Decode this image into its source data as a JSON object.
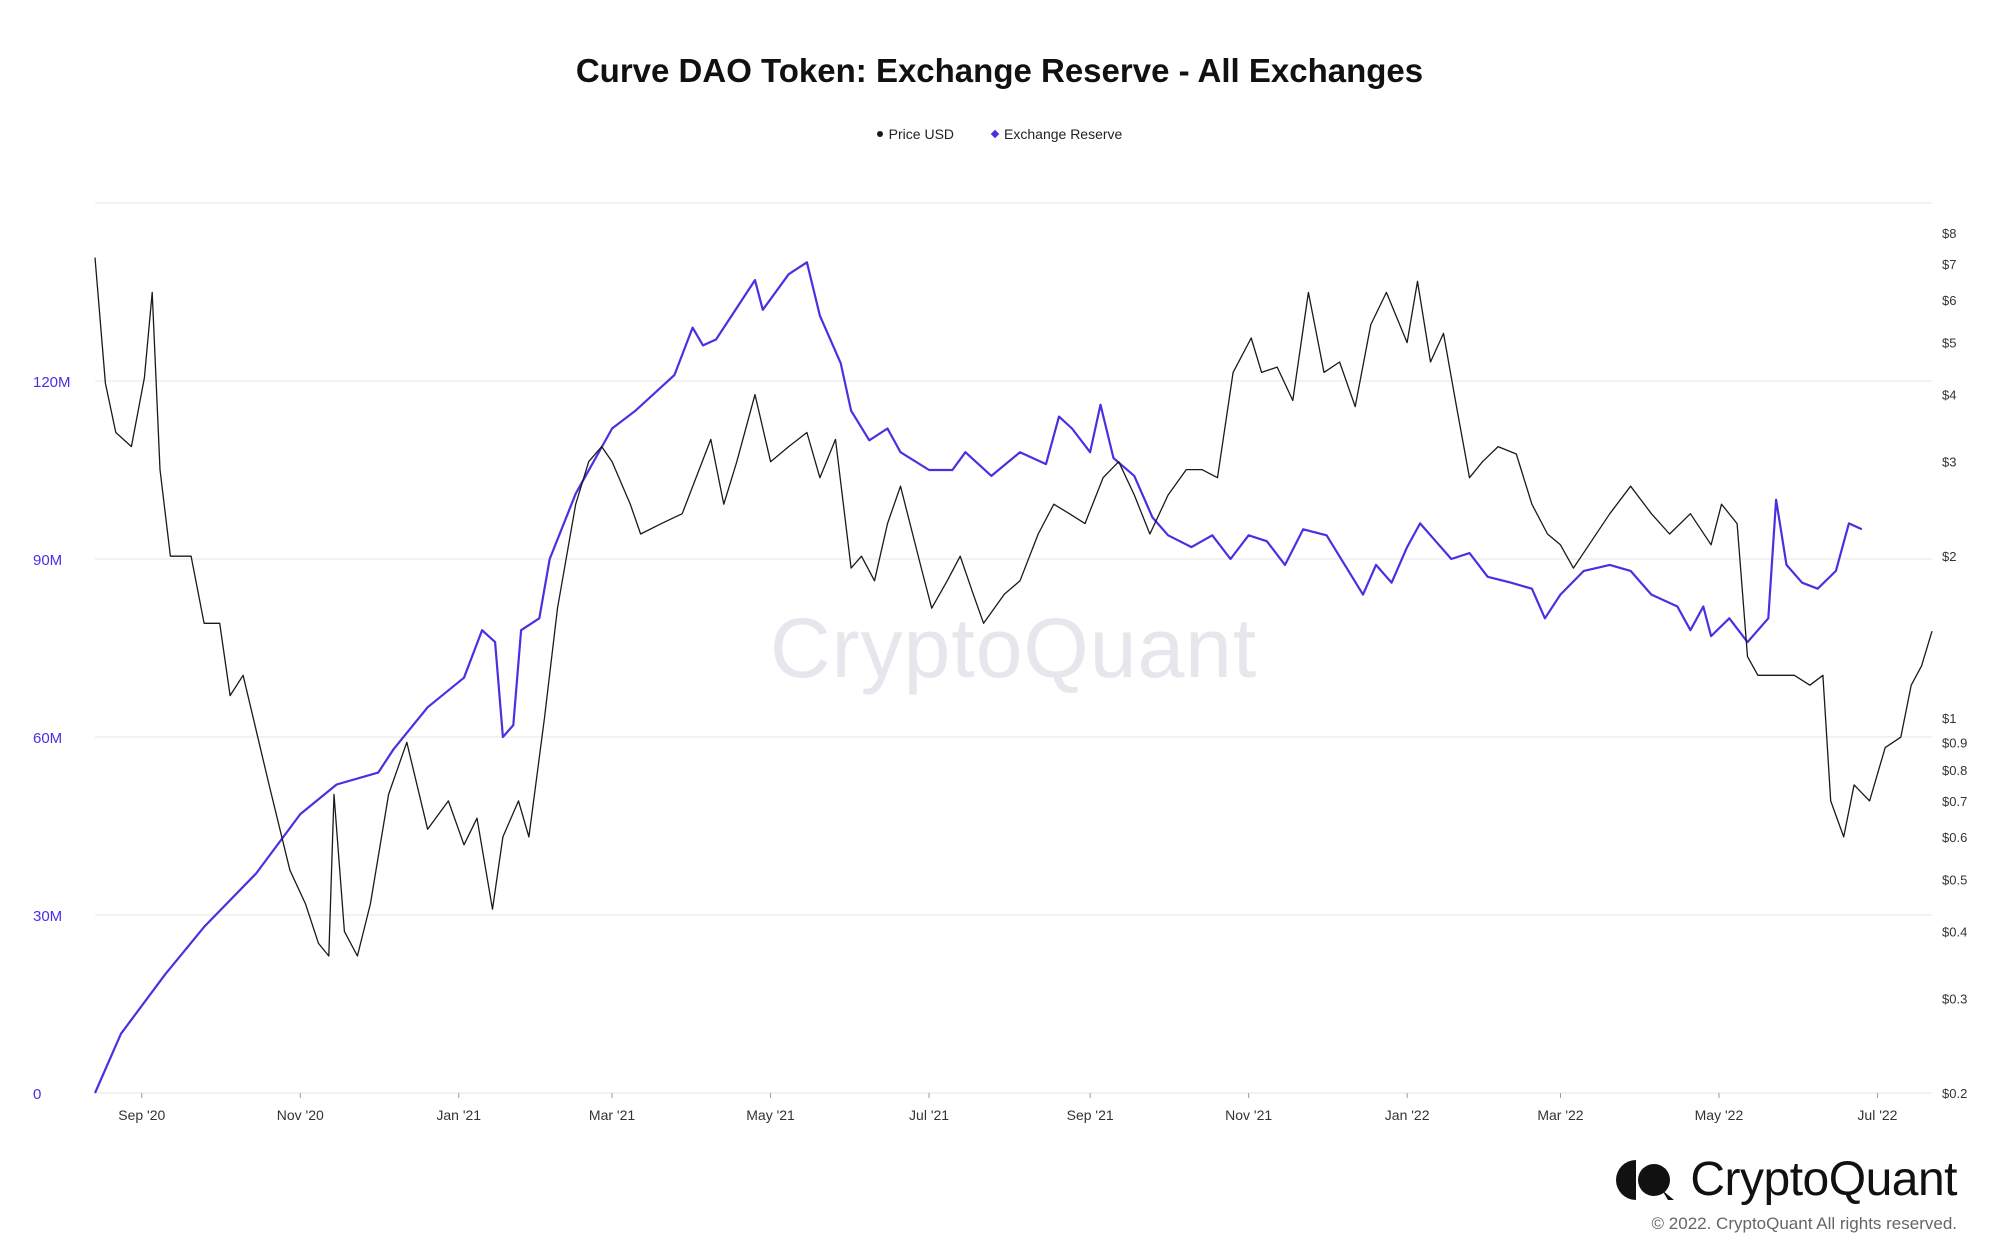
{
  "chart_data": {
    "type": "line",
    "title": "Curve DAO Token: Exchange Reserve - All Exchanges",
    "legend": {
      "placement": "top-center",
      "entries": [
        "Price USD",
        "Exchange Reserve"
      ]
    },
    "x_tick_labels": [
      "Sep '20",
      "Nov '20",
      "Jan '21",
      "Mar '21",
      "May '21",
      "Jul '21",
      "Sep '21",
      "Nov '21",
      "Jan '22",
      "Mar '22",
      "May '22",
      "Jul '22"
    ],
    "x_ticks": [
      "2020-09-01",
      "2020-11-01",
      "2021-01-01",
      "2021-03-01",
      "2021-05-01",
      "2021-07-01",
      "2021-09-01",
      "2021-11-01",
      "2022-01-01",
      "2022-03-01",
      "2022-05-01",
      "2022-07-01"
    ],
    "xlim": [
      "2020-08-14",
      "2022-07-22"
    ],
    "y_left": {
      "label": "",
      "lim": [
        0,
        150000000
      ],
      "ticks": [
        0,
        30000000,
        60000000,
        90000000,
        120000000
      ],
      "tick_labels": [
        "0",
        "30M",
        "60M",
        "90M",
        "120M"
      ],
      "color": "#4b2fe0"
    },
    "y_right": {
      "label": "",
      "scale": "log",
      "lim": [
        0.2,
        8
      ],
      "ticks": [
        0.2,
        0.3,
        0.4,
        0.5,
        0.6,
        0.7,
        0.8,
        0.9,
        1,
        2,
        3,
        4,
        5,
        6,
        7,
        8
      ],
      "tick_labels": [
        "$0.2",
        "$0.3",
        "$0.4",
        "$0.5",
        "$0.6",
        "$0.7",
        "$0.8",
        "$0.9",
        "$1",
        "$2",
        "$3",
        "$4",
        "$5",
        "$6",
        "$7",
        "$8"
      ]
    },
    "grid": true,
    "series": [
      {
        "name": "Exchange Reserve",
        "axis": "left",
        "color": "#4b2fe0",
        "points": [
          [
            "2020-08-14",
            0
          ],
          [
            "2020-08-24",
            10000000
          ],
          [
            "2020-09-10",
            20000000
          ],
          [
            "2020-09-25",
            28000000
          ],
          [
            "2020-10-15",
            37000000
          ],
          [
            "2020-11-01",
            47000000
          ],
          [
            "2020-11-15",
            52000000
          ],
          [
            "2020-12-01",
            54000000
          ],
          [
            "2020-12-07",
            58000000
          ],
          [
            "2020-12-20",
            65000000
          ],
          [
            "2021-01-03",
            70000000
          ],
          [
            "2021-01-10",
            78000000
          ],
          [
            "2021-01-15",
            76000000
          ],
          [
            "2021-01-18",
            60000000
          ],
          [
            "2021-01-22",
            62000000
          ],
          [
            "2021-01-25",
            78000000
          ],
          [
            "2021-02-01",
            80000000
          ],
          [
            "2021-02-05",
            90000000
          ],
          [
            "2021-02-15",
            101000000
          ],
          [
            "2021-03-01",
            112000000
          ],
          [
            "2021-03-10",
            115000000
          ],
          [
            "2021-03-20",
            119000000
          ],
          [
            "2021-03-25",
            121000000
          ],
          [
            "2021-04-01",
            129000000
          ],
          [
            "2021-04-05",
            126000000
          ],
          [
            "2021-04-10",
            127000000
          ],
          [
            "2021-04-25",
            137000000
          ],
          [
            "2021-04-28",
            132000000
          ],
          [
            "2021-05-08",
            138000000
          ],
          [
            "2021-05-15",
            140000000
          ],
          [
            "2021-05-20",
            131000000
          ],
          [
            "2021-05-28",
            123000000
          ],
          [
            "2021-06-01",
            115000000
          ],
          [
            "2021-06-08",
            110000000
          ],
          [
            "2021-06-15",
            112000000
          ],
          [
            "2021-06-20",
            108000000
          ],
          [
            "2021-07-01",
            105000000
          ],
          [
            "2021-07-10",
            105000000
          ],
          [
            "2021-07-15",
            108000000
          ],
          [
            "2021-07-25",
            104000000
          ],
          [
            "2021-08-05",
            108000000
          ],
          [
            "2021-08-15",
            106000000
          ],
          [
            "2021-08-20",
            114000000
          ],
          [
            "2021-08-25",
            112000000
          ],
          [
            "2021-09-01",
            108000000
          ],
          [
            "2021-09-05",
            116000000
          ],
          [
            "2021-09-10",
            107000000
          ],
          [
            "2021-09-18",
            104000000
          ],
          [
            "2021-09-25",
            97000000
          ],
          [
            "2021-10-01",
            94000000
          ],
          [
            "2021-10-10",
            92000000
          ],
          [
            "2021-10-18",
            94000000
          ],
          [
            "2021-10-25",
            90000000
          ],
          [
            "2021-11-01",
            94000000
          ],
          [
            "2021-11-08",
            93000000
          ],
          [
            "2021-11-15",
            89000000
          ],
          [
            "2021-11-22",
            95000000
          ],
          [
            "2021-12-01",
            94000000
          ],
          [
            "2021-12-08",
            89000000
          ],
          [
            "2021-12-15",
            84000000
          ],
          [
            "2021-12-20",
            89000000
          ],
          [
            "2021-12-26",
            86000000
          ],
          [
            "2022-01-01",
            92000000
          ],
          [
            "2022-01-06",
            96000000
          ],
          [
            "2022-01-12",
            93000000
          ],
          [
            "2022-01-18",
            90000000
          ],
          [
            "2022-01-25",
            91000000
          ],
          [
            "2022-02-01",
            87000000
          ],
          [
            "2022-02-10",
            86000000
          ],
          [
            "2022-02-18",
            85000000
          ],
          [
            "2022-02-23",
            80000000
          ],
          [
            "2022-03-01",
            84000000
          ],
          [
            "2022-03-10",
            88000000
          ],
          [
            "2022-03-20",
            89000000
          ],
          [
            "2022-03-28",
            88000000
          ],
          [
            "2022-04-05",
            84000000
          ],
          [
            "2022-04-15",
            82000000
          ],
          [
            "2022-04-20",
            78000000
          ],
          [
            "2022-04-25",
            82000000
          ],
          [
            "2022-04-28",
            77000000
          ],
          [
            "2022-05-05",
            80000000
          ],
          [
            "2022-05-12",
            76000000
          ],
          [
            "2022-05-20",
            80000000
          ],
          [
            "2022-05-23",
            100000000
          ],
          [
            "2022-05-27",
            89000000
          ],
          [
            "2022-06-02",
            86000000
          ],
          [
            "2022-06-08",
            85000000
          ],
          [
            "2022-06-15",
            88000000
          ],
          [
            "2022-06-20",
            96000000
          ],
          [
            "2022-06-25",
            95000000
          ]
        ]
      },
      {
        "name": "Price USD",
        "axis": "right",
        "color": "#1a1a1a",
        "points": [
          [
            "2020-08-14",
            7.2
          ],
          [
            "2020-08-18",
            4.2
          ],
          [
            "2020-08-22",
            3.4
          ],
          [
            "2020-08-28",
            3.2
          ],
          [
            "2020-09-02",
            4.3
          ],
          [
            "2020-09-05",
            6.2
          ],
          [
            "2020-09-08",
            2.9
          ],
          [
            "2020-09-12",
            2.0
          ],
          [
            "2020-09-20",
            2.0
          ],
          [
            "2020-09-25",
            1.5
          ],
          [
            "2020-10-01",
            1.5
          ],
          [
            "2020-10-05",
            1.1
          ],
          [
            "2020-10-10",
            1.2
          ],
          [
            "2020-10-20",
            0.75
          ],
          [
            "2020-10-28",
            0.52
          ],
          [
            "2020-11-03",
            0.45
          ],
          [
            "2020-11-08",
            0.38
          ],
          [
            "2020-11-12",
            0.36
          ],
          [
            "2020-11-14",
            0.72
          ],
          [
            "2020-11-18",
            0.4
          ],
          [
            "2020-11-23",
            0.36
          ],
          [
            "2020-11-28",
            0.45
          ],
          [
            "2020-12-05",
            0.72
          ],
          [
            "2020-12-12",
            0.9
          ],
          [
            "2020-12-20",
            0.62
          ],
          [
            "2020-12-28",
            0.7
          ],
          [
            "2021-01-03",
            0.58
          ],
          [
            "2021-01-08",
            0.65
          ],
          [
            "2021-01-14",
            0.44
          ],
          [
            "2021-01-18",
            0.6
          ],
          [
            "2021-01-24",
            0.7
          ],
          [
            "2021-01-28",
            0.6
          ],
          [
            "2021-02-03",
            1.0
          ],
          [
            "2021-02-08",
            1.6
          ],
          [
            "2021-02-15",
            2.5
          ],
          [
            "2021-02-20",
            3.0
          ],
          [
            "2021-02-25",
            3.2
          ],
          [
            "2021-03-01",
            3.0
          ],
          [
            "2021-03-08",
            2.5
          ],
          [
            "2021-03-12",
            2.2
          ],
          [
            "2021-03-20",
            2.3
          ],
          [
            "2021-03-28",
            2.4
          ],
          [
            "2021-04-08",
            3.3
          ],
          [
            "2021-04-13",
            2.5
          ],
          [
            "2021-04-18",
            3.0
          ],
          [
            "2021-04-25",
            4.0
          ],
          [
            "2021-05-01",
            3.0
          ],
          [
            "2021-05-08",
            3.2
          ],
          [
            "2021-05-15",
            3.4
          ],
          [
            "2021-05-20",
            2.8
          ],
          [
            "2021-05-26",
            3.3
          ],
          [
            "2021-06-01",
            1.9
          ],
          [
            "2021-06-05",
            2.0
          ],
          [
            "2021-06-10",
            1.8
          ],
          [
            "2021-06-15",
            2.3
          ],
          [
            "2021-06-20",
            2.7
          ],
          [
            "2021-06-28",
            1.9
          ],
          [
            "2021-07-02",
            1.6
          ],
          [
            "2021-07-08",
            1.8
          ],
          [
            "2021-07-13",
            2.0
          ],
          [
            "2021-07-18",
            1.7
          ],
          [
            "2021-07-22",
            1.5
          ],
          [
            "2021-07-30",
            1.7
          ],
          [
            "2021-08-05",
            1.8
          ],
          [
            "2021-08-12",
            2.2
          ],
          [
            "2021-08-18",
            2.5
          ],
          [
            "2021-08-24",
            2.4
          ],
          [
            "2021-08-30",
            2.3
          ],
          [
            "2021-09-06",
            2.8
          ],
          [
            "2021-09-12",
            3.0
          ],
          [
            "2021-09-18",
            2.6
          ],
          [
            "2021-09-24",
            2.2
          ],
          [
            "2021-10-01",
            2.6
          ],
          [
            "2021-10-08",
            2.9
          ],
          [
            "2021-10-14",
            2.9
          ],
          [
            "2021-10-20",
            2.8
          ],
          [
            "2021-10-26",
            4.4
          ],
          [
            "2021-11-02",
            5.1
          ],
          [
            "2021-11-06",
            4.4
          ],
          [
            "2021-11-12",
            4.5
          ],
          [
            "2021-11-18",
            3.9
          ],
          [
            "2021-11-24",
            6.2
          ],
          [
            "2021-11-30",
            4.4
          ],
          [
            "2021-12-06",
            4.6
          ],
          [
            "2021-12-12",
            3.8
          ],
          [
            "2021-12-18",
            5.4
          ],
          [
            "2021-12-24",
            6.2
          ],
          [
            "2022-01-01",
            5.0
          ],
          [
            "2022-01-05",
            6.5
          ],
          [
            "2022-01-10",
            4.6
          ],
          [
            "2022-01-15",
            5.2
          ],
          [
            "2022-01-20",
            3.8
          ],
          [
            "2022-01-25",
            2.8
          ],
          [
            "2022-01-30",
            3.0
          ],
          [
            "2022-02-05",
            3.2
          ],
          [
            "2022-02-12",
            3.1
          ],
          [
            "2022-02-18",
            2.5
          ],
          [
            "2022-02-24",
            2.2
          ],
          [
            "2022-03-01",
            2.1
          ],
          [
            "2022-03-06",
            1.9
          ],
          [
            "2022-03-12",
            2.1
          ],
          [
            "2022-03-20",
            2.4
          ],
          [
            "2022-03-28",
            2.7
          ],
          [
            "2022-04-05",
            2.4
          ],
          [
            "2022-04-12",
            2.2
          ],
          [
            "2022-04-20",
            2.4
          ],
          [
            "2022-04-28",
            2.1
          ],
          [
            "2022-05-02",
            2.5
          ],
          [
            "2022-05-08",
            2.3
          ],
          [
            "2022-05-12",
            1.3
          ],
          [
            "2022-05-16",
            1.2
          ],
          [
            "2022-05-22",
            1.2
          ],
          [
            "2022-05-30",
            1.2
          ],
          [
            "2022-06-05",
            1.15
          ],
          [
            "2022-06-10",
            1.2
          ],
          [
            "2022-06-13",
            0.7
          ],
          [
            "2022-06-18",
            0.6
          ],
          [
            "2022-06-22",
            0.75
          ],
          [
            "2022-06-28",
            0.7
          ],
          [
            "2022-07-04",
            0.88
          ],
          [
            "2022-07-10",
            0.92
          ],
          [
            "2022-07-14",
            1.15
          ],
          [
            "2022-07-18",
            1.25
          ],
          [
            "2022-07-22",
            1.45
          ]
        ]
      }
    ]
  },
  "watermark": "CryptoQuant",
  "brand": {
    "name": "CryptoQuant",
    "copyright": "© 2022. CryptoQuant All rights reserved."
  },
  "colors": {
    "reserve": "#4b2fe0",
    "price": "#1a1a1a",
    "grid": "#e5e5e5"
  },
  "icons": {
    "brand": "cryptoquant-logo-icon"
  }
}
